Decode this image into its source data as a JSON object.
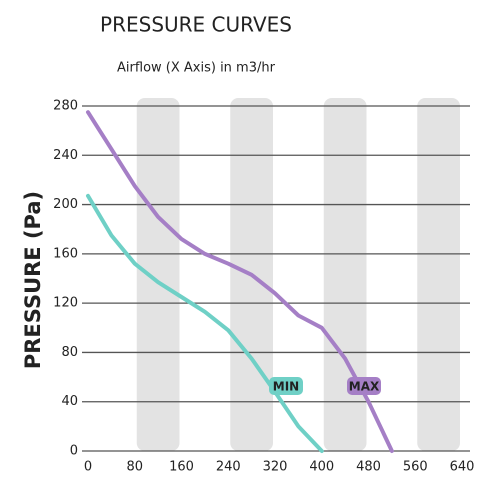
{
  "chart_data": {
    "type": "line",
    "title": "PRESSURE CURVES",
    "subtitle": "Airflow (X Axis) in m3/hr",
    "y_label": "PRESSURE (Pa)",
    "x": [
      0,
      40,
      80,
      120,
      160,
      200,
      240,
      280,
      320,
      360,
      400,
      440,
      480,
      520
    ],
    "series": [
      {
        "name": "MIN",
        "color": "#6fd0c6",
        "values": [
          207,
          175,
          152,
          137,
          125,
          113,
          98,
          75,
          48,
          20,
          0,
          null,
          null,
          null
        ]
      },
      {
        "name": "MAX",
        "color": "#a57fc6",
        "values": [
          275,
          245,
          215,
          190,
          172,
          160,
          152,
          143,
          128,
          110,
          100,
          75,
          40,
          0
        ]
      }
    ],
    "xlim": [
      0,
      640
    ],
    "xticks": [
      0,
      80,
      160,
      240,
      320,
      400,
      480,
      560,
      640
    ],
    "ylim": [
      0,
      280
    ],
    "yticks": [
      0,
      40,
      80,
      120,
      160,
      200,
      240,
      280
    ],
    "grid": true
  }
}
